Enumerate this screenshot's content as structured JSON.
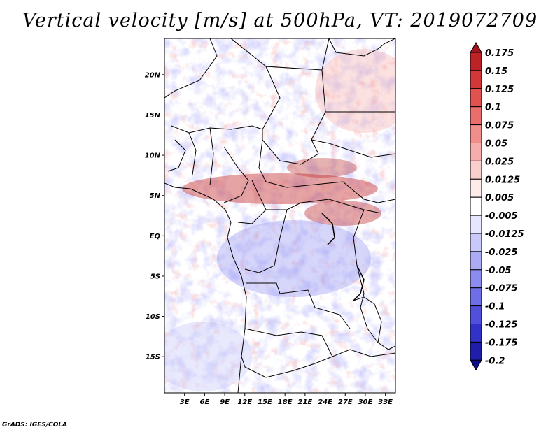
{
  "title": "Vertical velocity [m/s] at 500hPa, VT: 2019072709",
  "credit": "GrADS: IGES/COLA",
  "map": {
    "lat_ticks": [
      "20N",
      "15N",
      "10N",
      "5N",
      "EQ",
      "5S",
      "10S",
      "15S"
    ],
    "lon_ticks": [
      "3E",
      "6E",
      "9E",
      "12E",
      "15E",
      "18E",
      "21E",
      "24E",
      "27E",
      "30E",
      "33E"
    ],
    "lon_range": [
      0,
      34.5
    ],
    "lat_range": [
      -19.5,
      24.5
    ]
  },
  "colorbar": {
    "levels": [
      "0.175",
      "0.15",
      "0.125",
      "0.1",
      "0.075",
      "0.05",
      "0.025",
      "0.0125",
      "0.005",
      "-0.005",
      "-0.0125",
      "-0.025",
      "-0.05",
      "-0.075",
      "-0.1",
      "-0.125",
      "-0.175",
      "-0.2"
    ],
    "colors": [
      "#a0141e",
      "#bc2327",
      "#d2373a",
      "#e0524f",
      "#ea6e6b",
      "#f18e8b",
      "#f6aeac",
      "#fad0ce",
      "#fdecea",
      "#ffffff",
      "#e6e6ff",
      "#c8c8fa",
      "#aaaaf5",
      "#8c8cf0",
      "#6e6ee6",
      "#5050dc",
      "#3232c8",
      "#1e1eaa",
      "#0c0c8c"
    ]
  }
}
